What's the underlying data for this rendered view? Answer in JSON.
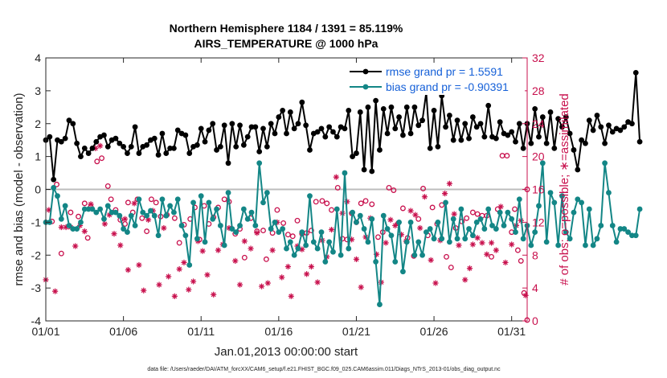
{
  "chart_data": {
    "type": "line",
    "title_line1": "Northern Hemisphere 1184 / 1391 = 85.119%",
    "title_line2": "AIRS_TEMPERATURE @ 1000 hPa",
    "xlabel": "Jan.01,2013 00:00:00 start",
    "ylabel_left": "rmse and bias (model - observation)",
    "ylabel_right": "# of obs: o=possible; ∗=assimilated",
    "footer": "data file: /Users/raeder/DAI/ATM_forcXX/CAM6_setup/f.e21.FHIST_BGC.f09_025.CAM6assim.011/Diags_NTrS_2013-01/obs_diag_output.nc",
    "xlim": [
      1,
      32
    ],
    "ylim_left": [
      -4,
      4
    ],
    "ylim_right": [
      0,
      32
    ],
    "x_ticks": [
      1,
      6,
      11,
      16,
      21,
      26,
      31
    ],
    "x_tick_labels": [
      "01/01",
      "01/06",
      "01/11",
      "01/16",
      "01/21",
      "01/26",
      "01/31"
    ],
    "yleft_ticks": [
      -4,
      -3,
      -2,
      -1,
      0,
      1,
      2,
      3,
      4
    ],
    "yleft_tick_labels": [
      "-4",
      "-3",
      "-2",
      "-1",
      "0",
      "1",
      "2",
      "3",
      "4"
    ],
    "yright_ticks": [
      0,
      4,
      8,
      12,
      16,
      20,
      24,
      28,
      32
    ],
    "yright_tick_labels": [
      "0",
      "4",
      "8",
      "12",
      "16",
      "20",
      "24",
      "28",
      "32"
    ],
    "legend_location": "top-right",
    "series": [
      {
        "name": "rmse grand pr = 1.5591",
        "axis": "left",
        "color": "#000000",
        "marker": "filled-circle",
        "start_day": 1.0,
        "step_days": 0.25,
        "values": [
          1.5,
          1.6,
          0.3,
          1.5,
          1.45,
          1.55,
          2.1,
          2.0,
          1.4,
          1.0,
          1.25,
          1.1,
          1.25,
          1.45,
          1.6,
          1.65,
          1.3,
          1.5,
          1.55,
          1.4,
          1.3,
          1.1,
          1.3,
          1.9,
          1.1,
          1.3,
          1.35,
          1.5,
          1.55,
          1.05,
          1.7,
          1.1,
          1.25,
          1.25,
          1.8,
          1.7,
          1.65,
          1.1,
          1.3,
          1.35,
          1.85,
          1.45,
          1.8,
          2.0,
          1.2,
          1.3,
          1.95,
          0.8,
          2.0,
          1.3,
          1.95,
          1.35,
          1.6,
          1.9,
          1.9,
          1.15,
          1.85,
          1.3,
          2.0,
          1.7,
          2.2,
          2.4,
          1.7,
          2.35,
          1.85,
          2.0,
          2.65,
          1.95,
          1.2,
          1.7,
          1.75,
          1.85,
          1.6,
          1.9,
          1.75,
          1.6,
          1.9,
          1.85,
          2.4,
          1.0,
          1.1,
          2.35,
          0.6,
          2.5,
          0.55,
          2.7,
          1.2,
          2.45,
          1.7,
          2.5,
          1.85,
          2.2,
          1.65,
          2.5,
          1.7,
          2.5,
          1.95,
          2.1,
          2.95,
          1.25,
          2.4,
          1.3,
          2.85,
          1.9,
          2.25,
          1.5,
          2.1,
          1.5,
          2.0,
          1.55,
          2.2,
          1.9,
          2.0,
          1.6,
          2.55,
          1.6,
          1.55,
          2.05,
          1.7,
          1.65,
          1.75,
          1.45,
          2.0,
          1.25,
          2.0,
          1.4,
          2.45,
          1.6,
          2.2,
          1.4,
          2.35,
          1.25,
          2.15,
          1.9,
          2.2,
          1.7,
          1.2,
          0.6,
          1.5,
          1.4,
          2.1,
          1.8,
          2.25,
          1.9,
          1.4,
          1.95,
          1.75,
          1.85,
          1.8,
          1.9,
          2.05,
          2.0,
          3.55,
          1.45
        ]
      },
      {
        "name": "bias grand pr = -0.90391",
        "axis": "left",
        "color": "#138686",
        "marker": "filled-circle",
        "start_day": 1.0,
        "step_days": 0.25,
        "values": [
          -1.0,
          -1.0,
          0.05,
          -0.2,
          -0.9,
          -0.5,
          -1.1,
          -1.2,
          -1.2,
          -1.0,
          -0.6,
          -0.6,
          -0.6,
          -0.7,
          -0.6,
          -0.9,
          -0.5,
          -0.7,
          -0.7,
          -0.8,
          -1.2,
          -1.3,
          -0.8,
          -1.1,
          -0.3,
          -0.7,
          -0.8,
          -0.65,
          -0.8,
          -1.4,
          -0.3,
          -0.8,
          -0.5,
          -0.7,
          -0.3,
          -1.1,
          -1.4,
          -2.3,
          -0.4,
          -1.5,
          -0.2,
          -1.6,
          -0.4,
          -0.9,
          -0.6,
          -1.1,
          -1.7,
          -0.1,
          -1.2,
          -1.3,
          -1.1,
          -0.6,
          -0.9,
          -0.7,
          -1.1,
          0.8,
          -0.4,
          -0.1,
          -1.2,
          -1.0,
          -1.3,
          -1.2,
          -1.8,
          -1.6,
          -2.0,
          -1.8,
          -1.3,
          -1.7,
          -0.2,
          -1.6,
          -1.8,
          -1.3,
          -2.2,
          -1.6,
          -1.9,
          -0.6,
          -2.0,
          0.5,
          -1.8,
          -0.7,
          -1.0,
          -0.8,
          -1.2,
          -1.6,
          -0.9,
          -2.2,
          -3.5,
          -0.8,
          -1.2,
          -1.4,
          -2.2,
          -1.0,
          -2.5,
          -1.6,
          -1.0,
          -2.0,
          -1.6,
          -2.0,
          -1.3,
          -1.2,
          -1.5,
          -1.0,
          -1.5,
          -0.4,
          -1.6,
          -0.9,
          -1.5,
          -0.6,
          -1.5,
          -1.2,
          -1.4,
          -1.0,
          -0.9,
          -1.2,
          -0.6,
          -1.1,
          -1.2,
          -0.7,
          -1.1,
          -0.7,
          -0.9,
          -1.3,
          -0.3,
          -1.5,
          -1.1,
          -1.7,
          -1.3,
          -0.5,
          0.8,
          -1.6,
          -0.1,
          -0.4,
          -1.7,
          -0.2,
          -1.3,
          -1.5,
          -0.7,
          -0.3,
          -0.4,
          -1.7,
          -0.6,
          -1.7,
          -1.5,
          -1.1,
          0.8,
          -0.1,
          -1.1,
          -1.6,
          -1.2,
          -1.2,
          -1.3,
          -1.4,
          -1.4,
          -0.6
        ]
      },
      {
        "name": "possible obs (o)",
        "axis": "right",
        "color": "#c8104d",
        "marker": "open-circle",
        "points": [
          [
            1.4,
            12.1
          ],
          [
            1.7,
            16.6
          ],
          [
            2.0,
            8.2
          ],
          [
            2.6,
            13.2
          ],
          [
            3.1,
            12.7
          ],
          [
            3.5,
            14.3
          ],
          [
            3.7,
            10.1
          ],
          [
            3.9,
            13.9
          ],
          [
            4.3,
            19.4
          ],
          [
            4.6,
            19.8
          ],
          [
            5.0,
            16.4
          ],
          [
            5.2,
            14.8
          ],
          [
            5.5,
            13.5
          ],
          [
            5.8,
            12.3
          ],
          [
            6.1,
            11.8
          ],
          [
            6.3,
            14.4
          ],
          [
            6.6,
            13.2
          ],
          [
            6.9,
            14.8
          ],
          [
            7.2,
            12.5
          ],
          [
            7.5,
            10.9
          ],
          [
            7.8,
            14.8
          ],
          [
            8.1,
            14.4
          ],
          [
            8.4,
            12.7
          ],
          [
            8.8,
            12.9
          ],
          [
            9.3,
            12.5
          ],
          [
            9.6,
            9.5
          ],
          [
            9.9,
            11.7
          ],
          [
            10.3,
            12.4
          ],
          [
            10.6,
            13.8
          ],
          [
            10.9,
            9.9
          ],
          [
            11.2,
            14.0
          ],
          [
            11.5,
            11.8
          ],
          [
            11.8,
            12.6
          ],
          [
            12.1,
            13.8
          ],
          [
            12.5,
            14.8
          ],
          [
            12.8,
            14.5
          ],
          [
            13.2,
            10.6
          ],
          [
            13.5,
            11.2
          ],
          [
            13.8,
            7.7
          ],
          [
            14.2,
            12.5
          ],
          [
            14.6,
            10.9
          ],
          [
            15.0,
            11.0
          ],
          [
            15.2,
            7.5
          ],
          [
            15.6,
            10.7
          ],
          [
            15.9,
            13.5
          ],
          [
            16.3,
            11.9
          ],
          [
            16.6,
            10.5
          ],
          [
            16.9,
            10.3
          ],
          [
            17.2,
            12.2
          ],
          [
            17.5,
            10.6
          ],
          [
            17.8,
            10.7
          ],
          [
            18.1,
            11.0
          ],
          [
            18.4,
            14.5
          ],
          [
            18.8,
            14.6
          ],
          [
            19.1,
            14.3
          ],
          [
            19.4,
            13.5
          ],
          [
            19.8,
            16.2
          ],
          [
            20.1,
            10.0
          ],
          [
            20.4,
            9.9
          ],
          [
            20.7,
            13.1
          ],
          [
            21.0,
            12.0
          ],
          [
            21.3,
            14.3
          ],
          [
            21.6,
            14.6
          ],
          [
            22.0,
            14.2
          ],
          [
            22.4,
            10.2
          ],
          [
            22.7,
            10.8
          ],
          [
            23.1,
            16.2
          ],
          [
            23.4,
            15.9
          ],
          [
            23.7,
            11.9
          ],
          [
            24.0,
            13.7
          ],
          [
            24.3,
            10.1
          ],
          [
            24.7,
            7.9
          ],
          [
            25.0,
            12.4
          ],
          [
            25.3,
            16.1
          ],
          [
            25.6,
            10.4
          ],
          [
            25.9,
            13.8
          ],
          [
            26.2,
            11.8
          ],
          [
            26.5,
            14.1
          ],
          [
            26.8,
            7.8
          ],
          [
            27.1,
            6.5
          ],
          [
            27.4,
            11.3
          ],
          [
            27.8,
            12.1
          ],
          [
            28.1,
            12.5
          ],
          [
            28.5,
            13.2
          ],
          [
            28.8,
            13.0
          ],
          [
            29.1,
            12.8
          ],
          [
            29.4,
            12.8
          ],
          [
            29.7,
            7.8
          ],
          [
            30.1,
            13.6
          ],
          [
            30.4,
            20.1
          ],
          [
            30.7,
            20.1
          ],
          [
            31.0,
            10.8
          ],
          [
            31.2,
            13.6
          ],
          [
            31.4,
            8.6
          ],
          [
            31.6,
            7.3
          ],
          [
            31.8,
            3.4
          ],
          [
            32.0,
            16.0
          ],
          [
            32.0,
            0.1
          ]
        ]
      },
      {
        "name": "assimilated obs (∗)",
        "axis": "right",
        "color": "#c8104d",
        "marker": "asterisk",
        "points": [
          [
            1.0,
            5.0
          ],
          [
            1.2,
            13.5
          ],
          [
            1.6,
            3.6
          ],
          [
            2.0,
            11.4
          ],
          [
            2.3,
            11.4
          ],
          [
            2.6,
            11.4
          ],
          [
            2.9,
            9.1
          ],
          [
            3.2,
            11.6
          ],
          [
            3.5,
            10.9
          ],
          [
            3.9,
            14.2
          ],
          [
            4.2,
            21.0
          ],
          [
            4.5,
            21.3
          ],
          [
            4.8,
            11.8
          ],
          [
            5.1,
            12.9
          ],
          [
            5.4,
            10.6
          ],
          [
            5.8,
            9.2
          ],
          [
            6.1,
            12.4
          ],
          [
            6.3,
            6.2
          ],
          [
            6.7,
            14.3
          ],
          [
            7.0,
            6.8
          ],
          [
            7.3,
            3.7
          ],
          [
            7.6,
            12.3
          ],
          [
            7.9,
            13.4
          ],
          [
            8.3,
            4.4
          ],
          [
            8.6,
            11.3
          ],
          [
            8.9,
            5.4
          ],
          [
            9.3,
            3.0
          ],
          [
            9.6,
            6.3
          ],
          [
            9.9,
            7.1
          ],
          [
            10.2,
            3.8
          ],
          [
            10.5,
            4.8
          ],
          [
            10.8,
            9.7
          ],
          [
            11.1,
            8.5
          ],
          [
            11.4,
            5.6
          ],
          [
            11.8,
            3.2
          ],
          [
            12.1,
            8.6
          ],
          [
            12.4,
            9.3
          ],
          [
            12.8,
            11.3
          ],
          [
            13.2,
            7.3
          ],
          [
            13.5,
            4.4
          ],
          [
            13.8,
            9.7
          ],
          [
            14.2,
            8.8
          ],
          [
            14.6,
            10.7
          ],
          [
            14.9,
            4.2
          ],
          [
            15.3,
            4.6
          ],
          [
            15.6,
            8.6
          ],
          [
            15.9,
            12.0
          ],
          [
            16.2,
            5.3
          ],
          [
            16.6,
            6.6
          ],
          [
            16.8,
            3.0
          ],
          [
            17.2,
            9.1
          ],
          [
            17.5,
            8.7
          ],
          [
            17.8,
            5.7
          ],
          [
            18.1,
            6.6
          ],
          [
            18.5,
            4.7
          ],
          [
            18.8,
            9.8
          ],
          [
            19.1,
            7.8
          ],
          [
            19.4,
            11.1
          ],
          [
            19.7,
            17.5
          ],
          [
            20.1,
            13.1
          ],
          [
            20.4,
            14.5
          ],
          [
            20.7,
            9.9
          ],
          [
            21.0,
            7.5
          ],
          [
            21.3,
            4.1
          ],
          [
            21.6,
            10.2
          ],
          [
            21.9,
            12.5
          ],
          [
            22.3,
            8.1
          ],
          [
            22.6,
            4.7
          ],
          [
            22.9,
            9.5
          ],
          [
            23.2,
            12.3
          ],
          [
            23.5,
            11.6
          ],
          [
            23.9,
            10.5
          ],
          [
            24.2,
            9.7
          ],
          [
            24.5,
            13.4
          ],
          [
            24.8,
            12.9
          ],
          [
            25.1,
            11.3
          ],
          [
            25.4,
            15.1
          ],
          [
            25.8,
            7.4
          ],
          [
            26.1,
            4.6
          ],
          [
            26.4,
            9.8
          ],
          [
            26.7,
            15.5
          ],
          [
            27.0,
            16.7
          ],
          [
            27.3,
            13.0
          ],
          [
            27.6,
            9.2
          ],
          [
            28.0,
            5.0
          ],
          [
            28.3,
            6.4
          ],
          [
            28.5,
            9.3
          ],
          [
            28.8,
            10.1
          ],
          [
            29.1,
            9.5
          ],
          [
            29.4,
            8.1
          ],
          [
            29.7,
            9.5
          ],
          [
            30.0,
            8.6
          ],
          [
            30.3,
            13.9
          ],
          [
            30.6,
            7.1
          ],
          [
            31.0,
            9.3
          ],
          [
            31.3,
            11.6
          ],
          [
            31.6,
            12.2
          ],
          [
            31.9,
            3.1
          ]
        ]
      }
    ],
    "legend": [
      {
        "label": "rmse grand pr = 1.5591",
        "color": "#000000"
      },
      {
        "label": "bias grand pr = -0.90391",
        "color": "#138686"
      }
    ]
  }
}
